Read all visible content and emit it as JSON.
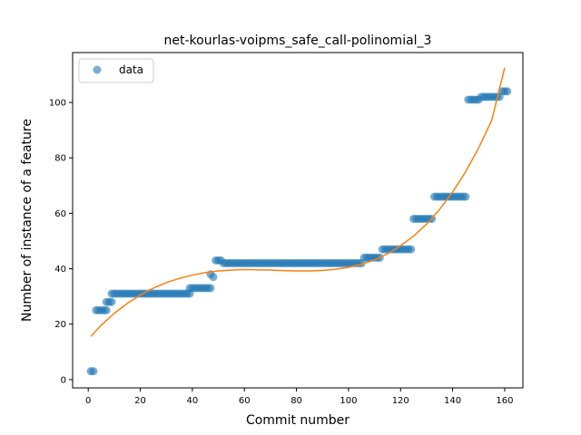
{
  "chart_data": {
    "type": "scatter",
    "title": "net-kourlas-voipms_safe_call-polinomial_3",
    "xlabel": "Commit number",
    "ylabel": "Number of instance of a feature",
    "xlim": [
      -6,
      167
    ],
    "ylim": [
      -3,
      118
    ],
    "xticks": [
      0,
      20,
      40,
      60,
      80,
      100,
      120,
      140,
      160
    ],
    "yticks": [
      0,
      20,
      40,
      60,
      80,
      100
    ],
    "grid": false,
    "legend": {
      "position": "top-left",
      "entries": [
        "data"
      ]
    },
    "colors": {
      "data": "#1f77b4",
      "fit": "#ff7f0e"
    },
    "series": [
      {
        "name": "data",
        "kind": "scatter",
        "segments": [
          {
            "x_from": 1,
            "x_to": 2,
            "y": 3
          },
          {
            "x_from": 3,
            "x_to": 7,
            "y": 25
          },
          {
            "x_from": 7,
            "x_to": 9,
            "y": 28
          },
          {
            "x_from": 9,
            "x_to": 39,
            "y": 31
          },
          {
            "x_from": 39,
            "x_to": 47,
            "y": 33
          },
          {
            "x_from": 47,
            "x_to": 47,
            "y": 38
          },
          {
            "x_from": 48,
            "x_to": 48,
            "y": 37
          },
          {
            "x_from": 49,
            "x_to": 51,
            "y": 43
          },
          {
            "x_from": 52,
            "x_to": 105,
            "y": 42
          },
          {
            "x_from": 106,
            "x_to": 112,
            "y": 44
          },
          {
            "x_from": 113,
            "x_to": 124,
            "y": 47
          },
          {
            "x_from": 125,
            "x_to": 132,
            "y": 58
          },
          {
            "x_from": 133,
            "x_to": 145,
            "y": 66
          },
          {
            "x_from": 146,
            "x_to": 150,
            "y": 101
          },
          {
            "x_from": 151,
            "x_to": 158,
            "y": 102
          },
          {
            "x_from": 159,
            "x_to": 161,
            "y": 104
          }
        ]
      },
      {
        "name": "",
        "kind": "line",
        "x": [
          1,
          5,
          10,
          15,
          20,
          25,
          30,
          35,
          40,
          45,
          50,
          55,
          60,
          65,
          70,
          75,
          80,
          85,
          90,
          95,
          100,
          105,
          110,
          115,
          120,
          125,
          130,
          135,
          140,
          145,
          150,
          155,
          160
        ],
        "y": [
          15.6,
          19.6,
          23.9,
          27.5,
          30.5,
          33.0,
          35.0,
          36.5,
          37.7,
          38.6,
          39.2,
          39.5,
          39.7,
          39.6,
          39.5,
          39.3,
          39.2,
          39.2,
          39.4,
          39.8,
          40.5,
          41.6,
          43.2,
          45.4,
          48.3,
          51.8,
          56.1,
          61.4,
          67.7,
          75.0,
          83.6,
          93.5,
          112.5
        ]
      }
    ]
  }
}
